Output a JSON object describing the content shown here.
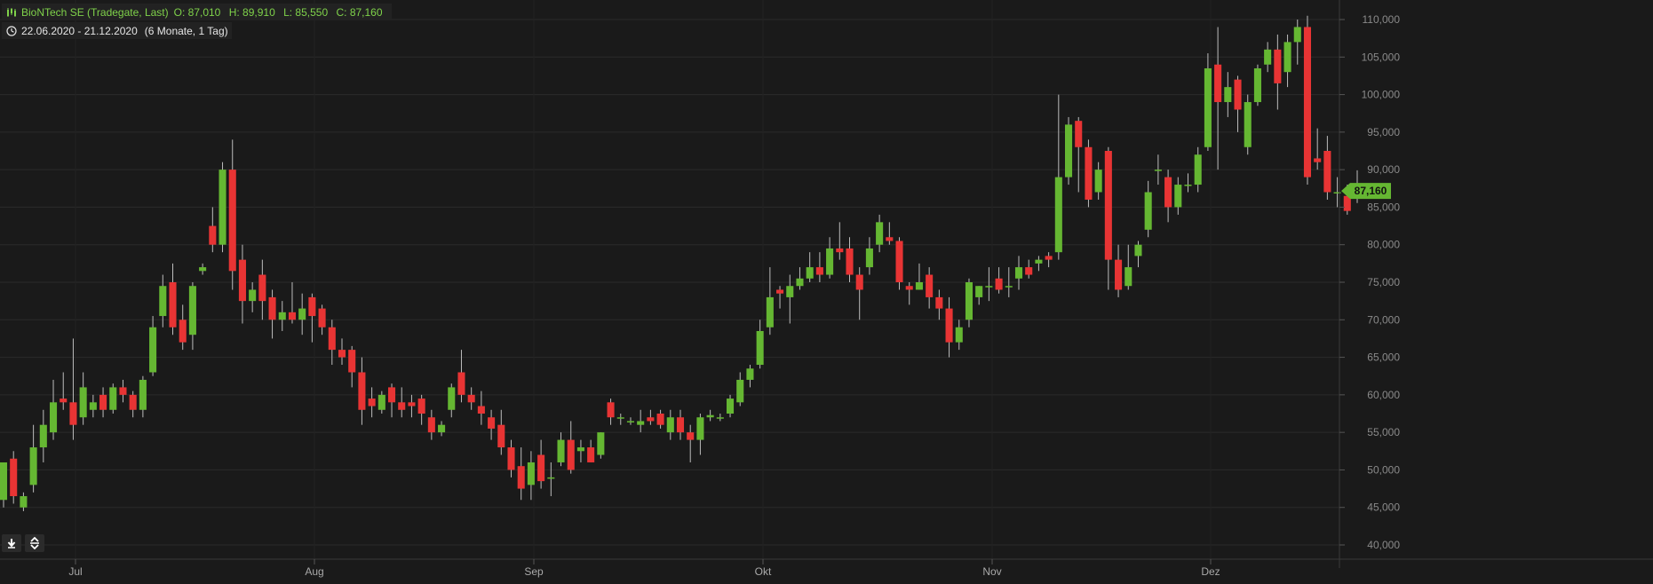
{
  "header": {
    "instrument": "BioNTech SE (Tradegate, Last)",
    "open": "O: 87,010",
    "high": "H: 89,910",
    "low": "L: 85,550",
    "close": "C: 87,160",
    "date_range": "22.06.2020 - 21.12.2020",
    "span": "(6 Monate, 1 Tag)"
  },
  "icons": {
    "series": "candle-icon",
    "range": "clock-icon",
    "download": "download-icon",
    "scale": "expand-vertical-icon"
  },
  "colors": {
    "up": "#65b732",
    "down": "#e83434",
    "background": "#1a1a1a",
    "grid": "#2a2a2a",
    "last_price": "#65b732"
  },
  "chart_data": {
    "type": "candlestick",
    "x_tick_labels": [
      "Jul",
      "Aug",
      "Sep",
      "Okt",
      "Nov",
      "Dez"
    ],
    "y_tick_labels": [
      "40,000",
      "45,000",
      "50,000",
      "55,000",
      "60,000",
      "65,000",
      "70,000",
      "75,000",
      "80,000",
      "85,000",
      "90,000",
      "95,000",
      "100,000",
      "105,000",
      "110,000"
    ],
    "ylim": [
      39000,
      111500
    ],
    "grid": true,
    "last_price_label": "87,160",
    "last_price": 87.16,
    "candles": [
      [
        46,
        51,
        45,
        51
      ],
      [
        51.5,
        46.5,
        45.5,
        52.5
      ],
      [
        45,
        46.5,
        44.5,
        47
      ],
      [
        48,
        53,
        47,
        56
      ],
      [
        53,
        56,
        51,
        58
      ],
      [
        55,
        59,
        54,
        62
      ],
      [
        59.5,
        59,
        58,
        63
      ],
      [
        59,
        56,
        54,
        67.5
      ],
      [
        57,
        61,
        56,
        63
      ],
      [
        58,
        59,
        57,
        60
      ],
      [
        60,
        58,
        57,
        61
      ],
      [
        58,
        61,
        57.5,
        61.5
      ],
      [
        61,
        60,
        59,
        62
      ],
      [
        60,
        58,
        57,
        60.5
      ],
      [
        58,
        62,
        57,
        62.5
      ],
      [
        63,
        69,
        62.5,
        70.5
      ],
      [
        70.5,
        74.5,
        69,
        76
      ],
      [
        75,
        69,
        68,
        77.5
      ],
      [
        70,
        67,
        66,
        72
      ],
      [
        68,
        74.5,
        66,
        75
      ],
      [
        76.5,
        77,
        76,
        77.5
      ],
      [
        82.5,
        80,
        79,
        85
      ],
      [
        80,
        90,
        79,
        91
      ],
      [
        90,
        76.5,
        74,
        94
      ],
      [
        78,
        72.5,
        69.5,
        80
      ],
      [
        72.5,
        74,
        71,
        75
      ],
      [
        76,
        72.5,
        70,
        78
      ],
      [
        73,
        70,
        67.5,
        74
      ],
      [
        70,
        71,
        68.5,
        72.5
      ],
      [
        71,
        70,
        69.5,
        75
      ],
      [
        70,
        71.5,
        68,
        73.5
      ],
      [
        73,
        70.5,
        67,
        73.5
      ],
      [
        71.5,
        69,
        68,
        72
      ],
      [
        69,
        66,
        64,
        70
      ],
      [
        66,
        65,
        64,
        67.5
      ],
      [
        66,
        63,
        61,
        66.5
      ],
      [
        63,
        58,
        56,
        65
      ],
      [
        59.5,
        58.5,
        57,
        61
      ],
      [
        58,
        60,
        57.5,
        60.5
      ],
      [
        61,
        59,
        57,
        61.5
      ],
      [
        59,
        58,
        57,
        61
      ],
      [
        59,
        58.5,
        57,
        60
      ],
      [
        59.5,
        57.5,
        56,
        60
      ],
      [
        57,
        55,
        54,
        58
      ],
      [
        55,
        56,
        54.5,
        56.5
      ],
      [
        58,
        61,
        57,
        61.5
      ],
      [
        63,
        60,
        59,
        66
      ],
      [
        60,
        59,
        58,
        61
      ],
      [
        58.5,
        57.5,
        56,
        60.5
      ],
      [
        57,
        55.5,
        54,
        58
      ],
      [
        56,
        53,
        52,
        58
      ],
      [
        53,
        50,
        49,
        54
      ],
      [
        50.5,
        47.5,
        46,
        53
      ],
      [
        48,
        51,
        46,
        52.5
      ],
      [
        52,
        48.5,
        47.5,
        54
      ],
      [
        49,
        49,
        46.5,
        51
      ],
      [
        51,
        54,
        50.5,
        55
      ],
      [
        54,
        50,
        49.5,
        56.5
      ],
      [
        52.5,
        53,
        51,
        54
      ],
      [
        53,
        51,
        51,
        54
      ],
      [
        52,
        55,
        51.5,
        55
      ],
      [
        59,
        57,
        56,
        59.5
      ],
      [
        57,
        57,
        56,
        57.5
      ],
      [
        56.5,
        56.5,
        56,
        57
      ],
      [
        56,
        56.5,
        55,
        58
      ],
      [
        57,
        56.5,
        56,
        58
      ],
      [
        57.5,
        56,
        55.5,
        58
      ],
      [
        55,
        57,
        54,
        58
      ],
      [
        57,
        55,
        54,
        58
      ],
      [
        55,
        54,
        51,
        56
      ],
      [
        54,
        57,
        52,
        57.5
      ],
      [
        57,
        57.3,
        56.5,
        58
      ],
      [
        57,
        57,
        56.5,
        57.5
      ],
      [
        57.5,
        59.5,
        57,
        60
      ],
      [
        59,
        62,
        58.5,
        63
      ],
      [
        62,
        63.5,
        61,
        64
      ],
      [
        64,
        68.5,
        63.5,
        70
      ],
      [
        69,
        73,
        68,
        77
      ],
      [
        74,
        73.5,
        71.5,
        74.5
      ],
      [
        73,
        74.5,
        69.5,
        76
      ],
      [
        74.5,
        75.5,
        74,
        77
      ],
      [
        75.5,
        77,
        75,
        79
      ],
      [
        77,
        76,
        75,
        79
      ],
      [
        76,
        79.5,
        75.5,
        81
      ],
      [
        79.5,
        79,
        78,
        83
      ],
      [
        79.5,
        76,
        75,
        81
      ],
      [
        76,
        74,
        70,
        77
      ],
      [
        77,
        79.5,
        76,
        81
      ],
      [
        80,
        83,
        79,
        84
      ],
      [
        81,
        80.5,
        80,
        83
      ],
      [
        80.5,
        75,
        74,
        81
      ],
      [
        74.5,
        74,
        72,
        75
      ],
      [
        74,
        75,
        74,
        77.5
      ],
      [
        76,
        73,
        71.5,
        77
      ],
      [
        73,
        71.5,
        70,
        74
      ],
      [
        71.5,
        67,
        65,
        73
      ],
      [
        67,
        69,
        66,
        70
      ],
      [
        70,
        75,
        69,
        75.5
      ],
      [
        73,
        74.5,
        72,
        74.5
      ],
      [
        74.5,
        74.5,
        72.5,
        77
      ],
      [
        75.5,
        74,
        73.5,
        77
      ],
      [
        74.5,
        74.5,
        73,
        77
      ],
      [
        75.5,
        77,
        74,
        78.5
      ],
      [
        77,
        76,
        75.5,
        78
      ],
      [
        77.5,
        78,
        76.5,
        78.5
      ],
      [
        78.5,
        78,
        77,
        79
      ],
      [
        79,
        89,
        78,
        100
      ],
      [
        89,
        96,
        88,
        97
      ],
      [
        96.5,
        93,
        87,
        97
      ],
      [
        93,
        86,
        85,
        94
      ],
      [
        87,
        90,
        86,
        91
      ],
      [
        92.5,
        78,
        74,
        93
      ],
      [
        78,
        74,
        73,
        80
      ],
      [
        74.5,
        77,
        74,
        80
      ],
      [
        78.5,
        80,
        77,
        80.5
      ],
      [
        82,
        87,
        81,
        88.5
      ],
      [
        90,
        90,
        88,
        92
      ],
      [
        89,
        85,
        83,
        90
      ],
      [
        85,
        88,
        84,
        89
      ],
      [
        88,
        88,
        87,
        89.5
      ],
      [
        88,
        92,
        87,
        93
      ],
      [
        93,
        103.5,
        92.5,
        105.5
      ],
      [
        104,
        99,
        90,
        109
      ],
      [
        99,
        101,
        97,
        103
      ],
      [
        102,
        98,
        95,
        102.5
      ],
      [
        93,
        99,
        92,
        100
      ],
      [
        99,
        103.5,
        98.5,
        104
      ],
      [
        104,
        106,
        103,
        107
      ],
      [
        106,
        101.5,
        98,
        108
      ],
      [
        103,
        107,
        101,
        108
      ],
      [
        107,
        109,
        104,
        110
      ],
      [
        109,
        89,
        88,
        110.5
      ],
      [
        91.5,
        91,
        90,
        95.5
      ],
      [
        92.5,
        87,
        86,
        94.5
      ],
      [
        87,
        87,
        85,
        89
      ],
      [
        86.5,
        84.5,
        84,
        88
      ],
      [
        87,
        87.16,
        85.55,
        89.91
      ]
    ]
  }
}
